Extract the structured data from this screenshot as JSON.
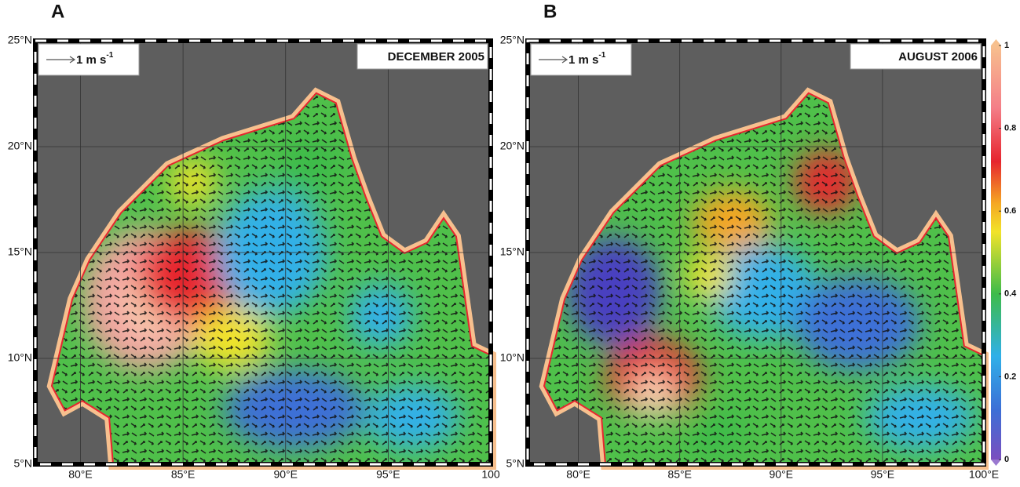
{
  "panels": [
    {
      "label": "A",
      "title": "DECEMBER 2005",
      "scale_text": "1 m s",
      "scale_sup": "-1",
      "xlim": [
        77.8,
        100
      ],
      "ylim": [
        5,
        25
      ],
      "xticks": [
        {
          "value": 80,
          "label": "80°E"
        },
        {
          "value": 85,
          "label": "85°E"
        },
        {
          "value": 90,
          "label": "90°E"
        },
        {
          "value": 95,
          "label": "95°E"
        },
        {
          "value": 100,
          "label": "100"
        }
      ],
      "yticks": [
        {
          "value": 5,
          "label": "5°N"
        },
        {
          "value": 10,
          "label": "10°N"
        },
        {
          "value": 15,
          "label": "15°N"
        },
        {
          "value": 20,
          "label": "20°N"
        },
        {
          "value": 25,
          "label": "25°N"
        }
      ]
    },
    {
      "label": "B",
      "title": "AUGUST 2006",
      "scale_text": "1 m s",
      "scale_sup": "-1",
      "xlim": [
        77.5,
        100
      ],
      "ylim": [
        5,
        25
      ],
      "xticks": [
        {
          "value": 80,
          "label": "80°E"
        },
        {
          "value": 85,
          "label": "85°E"
        },
        {
          "value": 90,
          "label": "90°E"
        },
        {
          "value": 95,
          "label": "95°E"
        },
        {
          "value": 100,
          "label": "100°E"
        }
      ],
      "yticks": [
        {
          "value": 5,
          "label": "5°N"
        },
        {
          "value": 10,
          "label": "10°N"
        },
        {
          "value": 15,
          "label": "15°N"
        },
        {
          "value": 20,
          "label": "20°N"
        },
        {
          "value": 25,
          "label": "25°N"
        }
      ]
    }
  ],
  "colorbar": {
    "lim": [
      0,
      1
    ],
    "ticks": [
      0,
      0.2,
      0.4,
      0.6,
      0.8,
      1
    ]
  }
}
